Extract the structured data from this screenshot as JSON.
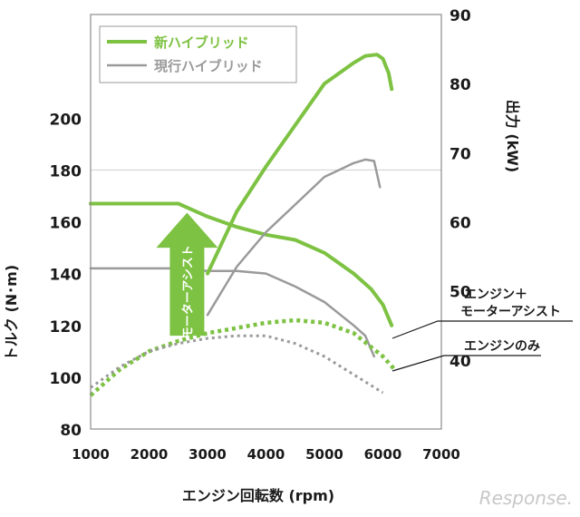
{
  "chart_data": {
    "type": "line",
    "xlabel": "エンジン回転数 (rpm)",
    "ylabel_left": "トルク (N･m)",
    "ylabel_right": "出力 (kW)",
    "xlim": [
      1000,
      7000
    ],
    "xticks": [
      1000,
      2000,
      3000,
      4000,
      5000,
      6000,
      7000
    ],
    "ylim_left": [
      80,
      240
    ],
    "yticks_left": [
      80,
      100,
      120,
      140,
      160,
      180,
      200
    ],
    "ylim_right": [
      30,
      90
    ],
    "yticks_right": [
      40,
      50,
      60,
      70,
      80,
      90
    ],
    "grid": "single horizontal line at 180",
    "legend": {
      "placement": "top-left",
      "entries": [
        {
          "label": "新ハイブリッド",
          "color": "#7dc242",
          "style": "solid"
        },
        {
          "label": "現行ハイブリッド",
          "color": "#9a9a9a",
          "style": "solid"
        }
      ]
    },
    "annotations": {
      "arrow_label": "モーターアシスト",
      "label_motor": [
        "エンジン＋",
        "モーターアシスト"
      ],
      "label_engine": "エンジンのみ"
    },
    "watermark": "Response.",
    "series": [
      {
        "name": "新ハイブリッド",
        "quantity": "torque",
        "axis": "left",
        "style": "solid",
        "color": "#7dc242",
        "x": [
          1000,
          2000,
          2500,
          3000,
          3500,
          4000,
          4500,
          5000,
          5500,
          5800,
          6000,
          6150
        ],
        "y": [
          167,
          167,
          167,
          162,
          158,
          155,
          153,
          148,
          140,
          134,
          128,
          120
        ]
      },
      {
        "name": "現行ハイブリッド",
        "quantity": "torque",
        "axis": "left",
        "style": "solid",
        "color": "#9a9a9a",
        "x": [
          1000,
          2000,
          2500,
          3000,
          3500,
          4000,
          4500,
          5000,
          5500,
          5700,
          5850
        ],
        "y": [
          142,
          142,
          142,
          141,
          141,
          140,
          135,
          129,
          120,
          116,
          108
        ]
      },
      {
        "name": "新ハイブリッド",
        "quantity": "power",
        "axis": "right",
        "style": "solid",
        "color": "#7dc242",
        "x": [
          3000,
          3500,
          4000,
          4500,
          5000,
          5500,
          5700,
          5900,
          6000,
          6100,
          6150
        ],
        "y": [
          52.5,
          61.5,
          68,
          74,
          80,
          83,
          84,
          84.2,
          83.6,
          81.5,
          79.2
        ]
      },
      {
        "name": "現行ハイブリッド",
        "quantity": "power",
        "axis": "right",
        "style": "solid",
        "color": "#9a9a9a",
        "x": [
          3000,
          3500,
          4000,
          4500,
          5000,
          5500,
          5700,
          5850,
          5950
        ],
        "y": [
          46.5,
          53.5,
          58.5,
          62.5,
          66.5,
          68.5,
          69,
          68.8,
          65
        ]
      },
      {
        "name": "新ハイブリッド",
        "quantity": "engine-only torque",
        "axis": "left",
        "style": "dotted",
        "color": "#7dc242",
        "x": [
          1000,
          1500,
          2000,
          2500,
          3000,
          3500,
          4000,
          4500,
          5000,
          5500,
          6000,
          6200
        ],
        "y": [
          93,
          103,
          110,
          114,
          117,
          119,
          121,
          122,
          121,
          117,
          108,
          103
        ]
      },
      {
        "name": "現行ハイブリッド",
        "quantity": "engine-only torque",
        "axis": "left",
        "style": "dotted",
        "color": "#9a9a9a",
        "x": [
          1000,
          1500,
          2000,
          2500,
          3000,
          3500,
          4000,
          4500,
          5000,
          5500,
          6000
        ],
        "y": [
          96,
          104,
          110,
          113,
          115,
          116,
          116,
          113,
          108,
          101,
          94
        ]
      }
    ]
  }
}
